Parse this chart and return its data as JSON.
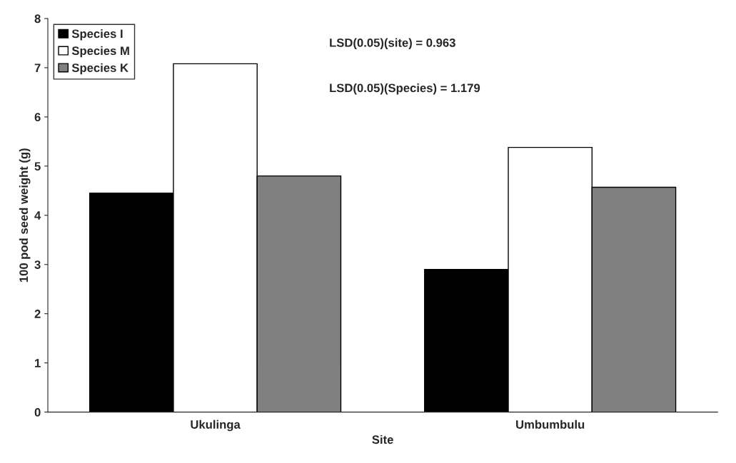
{
  "chart_data": {
    "type": "bar",
    "categories": [
      "Ukulinga",
      "Umbumbulu"
    ],
    "series": [
      {
        "name": "Species I",
        "color": "#000000",
        "values": [
          4.45,
          2.9
        ]
      },
      {
        "name": "Species M",
        "color": "#ffffff",
        "values": [
          7.08,
          5.38
        ]
      },
      {
        "name": "Species K",
        "color": "#808080",
        "values": [
          4.8,
          4.57
        ]
      }
    ],
    "xlabel": "Site",
    "ylabel": "100 pod seed weight (g)",
    "ylim": [
      0,
      8
    ],
    "yticks": [
      0,
      1,
      2,
      3,
      4,
      5,
      6,
      7,
      8
    ],
    "annotations": [
      "LSD(0.05)(site) = 0.963",
      "LSD(0.05)(Species) = 1.179"
    ],
    "legend": "top left",
    "grid": false
  }
}
